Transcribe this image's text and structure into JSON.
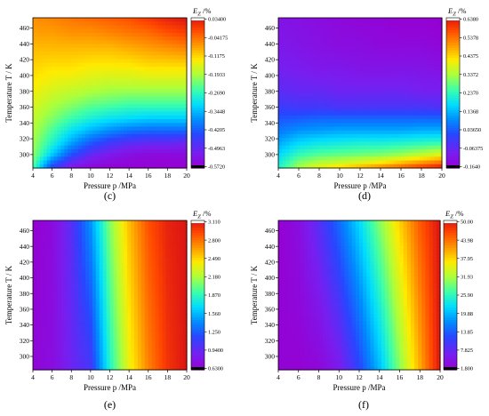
{
  "chart_data": [
    {
      "type": "heatmap",
      "panel_label": "(c)",
      "xlabel": "Pressure p /MPa",
      "ylabel": "Temperature T / K",
      "colorbar_label": "E_Z /%",
      "xlim": [
        4,
        20
      ],
      "ylim": [
        283,
        473
      ],
      "x_ticks": [
        "4",
        "6",
        "8",
        "10",
        "12",
        "14",
        "16",
        "18",
        "20"
      ],
      "y_ticks": [
        "300",
        "320",
        "340",
        "360",
        "380",
        "400",
        "420",
        "440",
        "460"
      ],
      "colorbar_ticks": [
        "0.03400",
        "-0.04175",
        "-0.1175",
        "-0.1933",
        "-0.2690",
        "-0.3448",
        "-0.4205",
        "-0.4963",
        "-0.5720"
      ],
      "zlim": [
        -0.572,
        0.034
      ],
      "colorscale": "rainbow-magenta-low",
      "field_rows": [
        {
          "T": 283,
          "values": [
            -0.25,
            -0.45,
            -0.53,
            -0.56,
            -0.57,
            -0.57,
            -0.57,
            -0.57,
            -0.57
          ]
        },
        {
          "T": 300,
          "values": [
            -0.21,
            -0.33,
            -0.43,
            -0.49,
            -0.52,
            -0.54,
            -0.55,
            -0.55,
            -0.55
          ]
        },
        {
          "T": 315,
          "values": [
            -0.2,
            -0.28,
            -0.36,
            -0.42,
            -0.46,
            -0.48,
            -0.49,
            -0.49,
            -0.5
          ]
        },
        {
          "T": 330,
          "values": [
            -0.19,
            -0.25,
            -0.31,
            -0.35,
            -0.38,
            -0.4,
            -0.41,
            -0.41,
            -0.41
          ]
        },
        {
          "T": 345,
          "values": [
            -0.18,
            -0.22,
            -0.26,
            -0.29,
            -0.31,
            -0.32,
            -0.33,
            -0.33,
            -0.33
          ]
        },
        {
          "T": 365,
          "values": [
            -0.16,
            -0.19,
            -0.21,
            -0.23,
            -0.24,
            -0.25,
            -0.25,
            -0.25,
            -0.25
          ]
        },
        {
          "T": 385,
          "values": [
            -0.14,
            -0.16,
            -0.17,
            -0.18,
            -0.19,
            -0.19,
            -0.19,
            -0.19,
            -0.19
          ]
        },
        {
          "T": 410,
          "values": [
            -0.12,
            -0.13,
            -0.13,
            -0.14,
            -0.14,
            -0.14,
            -0.13,
            -0.13,
            -0.13
          ]
        },
        {
          "T": 435,
          "values": [
            -0.1,
            -0.1,
            -0.1,
            -0.1,
            -0.1,
            -0.09,
            -0.08,
            -0.07,
            -0.06
          ]
        },
        {
          "T": 455,
          "values": [
            -0.08,
            -0.08,
            -0.07,
            -0.07,
            -0.06,
            -0.05,
            -0.04,
            -0.02,
            -0.005
          ]
        },
        {
          "T": 473,
          "values": [
            -0.07,
            -0.06,
            -0.05,
            -0.04,
            -0.03,
            -0.02,
            0.0,
            0.02,
            0.034
          ]
        }
      ]
    },
    {
      "type": "heatmap",
      "panel_label": "(d)",
      "xlabel": "Pressure p /MPa",
      "ylabel": "Temperature T / K",
      "colorbar_label": "E_Z /%",
      "xlim": [
        4,
        20
      ],
      "ylim": [
        283,
        473
      ],
      "x_ticks": [
        "4",
        "6",
        "8",
        "10",
        "12",
        "14",
        "16",
        "18",
        "20"
      ],
      "y_ticks": [
        "300",
        "320",
        "340",
        "360",
        "380",
        "400",
        "420",
        "440",
        "460"
      ],
      "colorbar_ticks": [
        "0.6380",
        "0.5378",
        "0.4375",
        "0.3372",
        "0.2370",
        "0.1368",
        "0.03650",
        "-0.06375",
        "-0.1640"
      ],
      "zlim": [
        -0.164,
        0.638
      ],
      "colorscale": "rainbow-magenta-low",
      "field_rows": [
        {
          "T": 283,
          "values": [
            0.22,
            0.33,
            0.4,
            0.44,
            0.48,
            0.52,
            0.56,
            0.6,
            0.64
          ]
        },
        {
          "T": 290,
          "values": [
            0.2,
            0.3,
            0.34,
            0.36,
            0.38,
            0.41,
            0.45,
            0.49,
            0.53
          ]
        },
        {
          "T": 300,
          "values": [
            0.17,
            0.24,
            0.27,
            0.28,
            0.29,
            0.3,
            0.32,
            0.35,
            0.38
          ]
        },
        {
          "T": 315,
          "values": [
            0.12,
            0.17,
            0.19,
            0.2,
            0.21,
            0.21,
            0.22,
            0.23,
            0.24
          ]
        },
        {
          "T": 330,
          "values": [
            0.07,
            0.1,
            0.11,
            0.12,
            0.12,
            0.12,
            0.12,
            0.13,
            0.13
          ]
        },
        {
          "T": 345,
          "values": [
            0.03,
            0.04,
            0.05,
            0.05,
            0.05,
            0.05,
            0.05,
            0.05,
            0.05
          ]
        },
        {
          "T": 360,
          "values": [
            -0.01,
            -0.02,
            -0.02,
            -0.03,
            -0.03,
            -0.03,
            -0.03,
            -0.03,
            -0.04
          ]
        },
        {
          "T": 380,
          "values": [
            -0.05,
            -0.06,
            -0.06,
            -0.07,
            -0.07,
            -0.07,
            -0.07,
            -0.08,
            -0.08
          ]
        },
        {
          "T": 410,
          "values": [
            -0.08,
            -0.09,
            -0.1,
            -0.1,
            -0.11,
            -0.11,
            -0.11,
            -0.11,
            -0.12
          ]
        },
        {
          "T": 440,
          "values": [
            -0.1,
            -0.11,
            -0.12,
            -0.13,
            -0.13,
            -0.14,
            -0.14,
            -0.14,
            -0.15
          ]
        },
        {
          "T": 473,
          "values": [
            -0.11,
            -0.12,
            -0.13,
            -0.14,
            -0.15,
            -0.15,
            -0.16,
            -0.16,
            -0.164
          ]
        }
      ]
    },
    {
      "type": "heatmap",
      "panel_label": "(e)",
      "xlabel": "Pressure p /MPa",
      "ylabel": "Temperature T / K",
      "colorbar_label": "E_Z /%",
      "xlim": [
        4,
        20
      ],
      "ylim": [
        283,
        473
      ],
      "x_ticks": [
        "4",
        "6",
        "8",
        "10",
        "12",
        "14",
        "16",
        "18",
        "20"
      ],
      "y_ticks": [
        "300",
        "320",
        "340",
        "360",
        "380",
        "400",
        "420",
        "440",
        "460"
      ],
      "colorbar_ticks": [
        "3.110",
        "2.800",
        "2.490",
        "2.180",
        "1.870",
        "1.560",
        "1.250",
        "0.9400",
        "0.6300"
      ],
      "zlim": [
        0.63,
        3.11
      ],
      "colorscale": "rainbow-magenta-low",
      "field_rows": [
        {
          "T": 283,
          "values": [
            0.68,
            0.74,
            0.92,
            1.06,
            1.82,
            2.35,
            2.72,
            2.98,
            3.11
          ]
        },
        {
          "T": 473,
          "values": [
            0.63,
            0.72,
            1.0,
            1.45,
            2.08,
            2.55,
            2.88,
            3.05,
            3.11
          ]
        }
      ]
    },
    {
      "type": "heatmap",
      "panel_label": "(f)",
      "xlabel": "Pressure p /MPa",
      "ylabel": "Temperature T / K",
      "colorbar_label": "E_Z /%",
      "xlim": [
        4,
        20
      ],
      "ylim": [
        283,
        473
      ],
      "x_ticks": [
        "4",
        "6",
        "8",
        "10",
        "12",
        "14",
        "16",
        "18",
        "20"
      ],
      "y_ticks": [
        "300",
        "320",
        "340",
        "360",
        "380",
        "400",
        "420",
        "440",
        "460"
      ],
      "colorbar_ticks": [
        "50.00",
        "43.98",
        "37.95",
        "31.93",
        "25.90",
        "19.88",
        "13.85",
        "7.825",
        "1.800"
      ],
      "zlim": [
        1.8,
        50.0
      ],
      "colorscale": "rainbow-magenta-low",
      "field_rows": [
        {
          "T": 283,
          "values": [
            2.5,
            2.2,
            3.0,
            6.0,
            12.0,
            20.0,
            30.0,
            40.0,
            50.0
          ]
        },
        {
          "T": 473,
          "values": [
            1.8,
            4.0,
            9.0,
            15.0,
            22.0,
            30.0,
            38.0,
            45.0,
            50.0
          ]
        }
      ]
    }
  ]
}
